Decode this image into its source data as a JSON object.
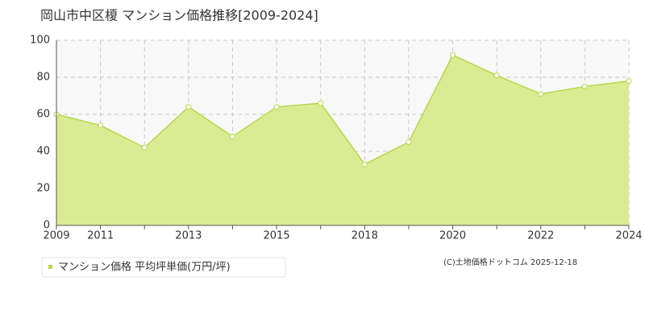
{
  "chart_data": {
    "type": "area",
    "title": "岡山市中区榎 マンション価格推移[2009-2024]",
    "categories": [
      "2009",
      "2011",
      null,
      "2013",
      null,
      "2015",
      null,
      "2018",
      null,
      "2020",
      null,
      "2022",
      null,
      "2024"
    ],
    "series": [
      {
        "name": "マンション価格 平均坪単価(万円/坪)",
        "color": "#b5d94a",
        "fill": "#dbeb93",
        "values": [
          60,
          54,
          42,
          64,
          48,
          64,
          66,
          33,
          45,
          92,
          81,
          71,
          75,
          78
        ]
      }
    ],
    "ylim": [
      0,
      100
    ],
    "yticks": [
      0,
      20,
      40,
      60,
      80,
      100
    ],
    "grid": true,
    "legend": "bottom-left",
    "footer": "(C)土地価格ドットコム 2025-12-18"
  }
}
